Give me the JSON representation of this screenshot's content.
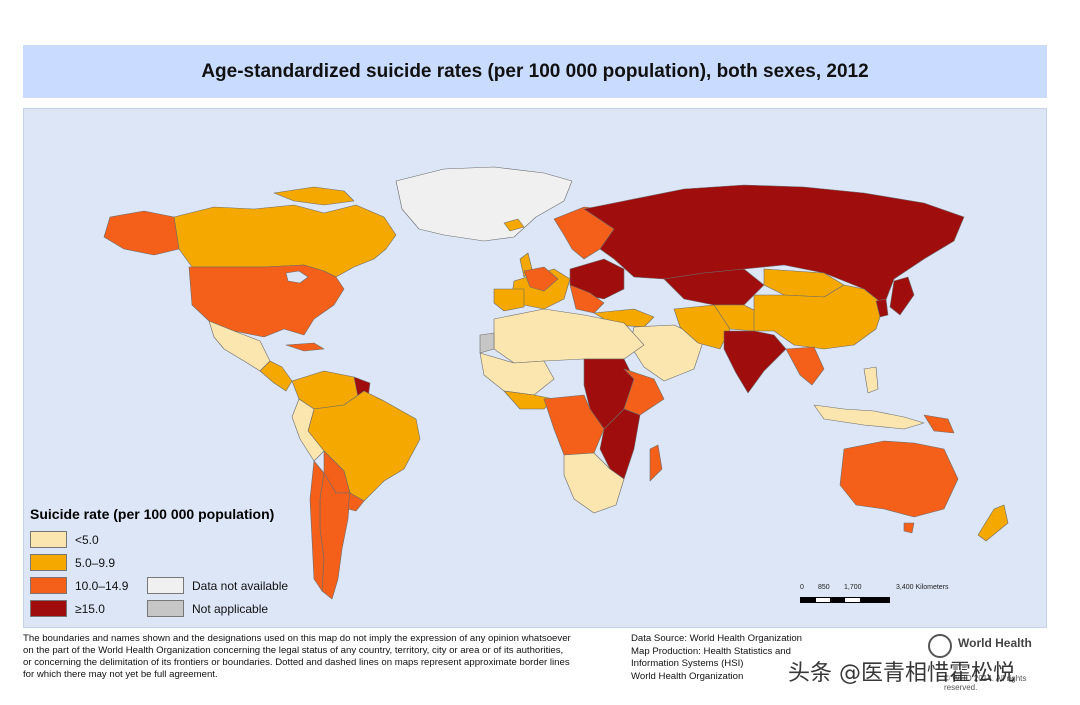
{
  "map": {
    "title": "Age-standardized suicide rates (per 100 000 population), both sexes, 2012",
    "colors": {
      "ocean": "#dde6f7",
      "lt5": "#fce6b0",
      "r5_9": "#f5a800",
      "r10_14": "#f4601a",
      "ge15": "#a00d0d",
      "na": "#f0f0f0",
      "notapp": "#c6c6c6",
      "border": "#6b6b6b"
    }
  },
  "legend": {
    "title": "Suicide rate (per 100 000 population)",
    "items": [
      {
        "label": "<5.0",
        "color": "#fce6b0"
      },
      {
        "label": "5.0–9.9",
        "color": "#f5a800"
      },
      {
        "label": "10.0–14.9",
        "color": "#f4601a"
      },
      {
        "label": "≥15.0",
        "color": "#a00d0d"
      }
    ],
    "extra": [
      {
        "label": "Data not available",
        "color": "#f0f0f0"
      },
      {
        "label": "Not applicable",
        "color": "#c6c6c6"
      }
    ]
  },
  "scale": {
    "labels": [
      "0",
      "850",
      "1,700",
      "3,400 Kilometers"
    ]
  },
  "footer": {
    "disclaimer_lines": [
      "The boundaries and names shown and the designations used on this map do not imply the expression of any opinion whatsoever",
      "on the part of the World Health Organization concerning the legal status of any country, territory, city or area or of its authorities,",
      "or concerning the delimitation of its frontiers or boundaries. Dotted and dashed lines on maps represent approximate border lines",
      "for which there may not yet be full agreement."
    ],
    "source_lines": [
      "Data Source: World Health Organization",
      "Map Production: Health Statistics and",
      "Information Systems (HSI)",
      "World Health Organization"
    ],
    "who_name": "World Health",
    "copyright": "© WHO 2014. All rights reserved."
  },
  "watermark": "头条 @医青相惜霍松悦"
}
